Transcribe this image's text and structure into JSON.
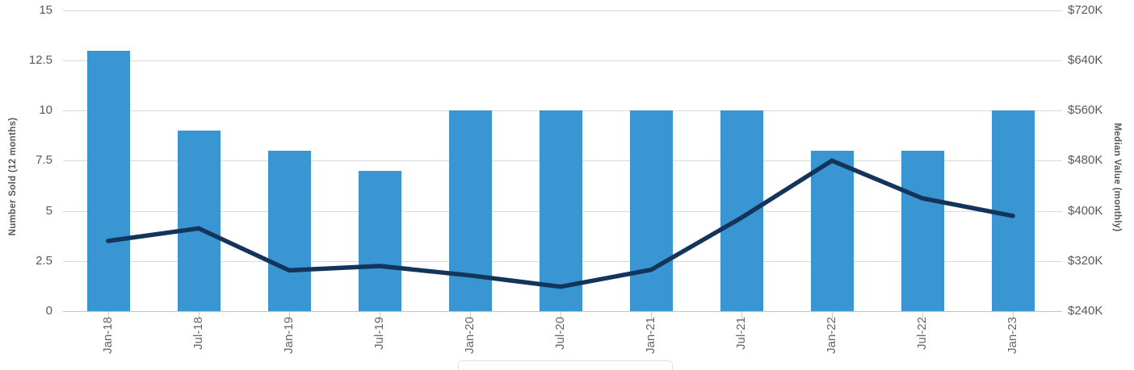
{
  "chart_data": {
    "type": "bar",
    "subtype": "combo-bar-line-dual-axis",
    "title": "",
    "categories": [
      "Jan-18",
      "Jul-18",
      "Jan-19",
      "Jul-19",
      "Jan-20",
      "Jul-20",
      "Jan-21",
      "Jul-21",
      "Jan-22",
      "Jul-22",
      "Jan-23"
    ],
    "series": [
      {
        "name": "Number Sold (12 months)",
        "type": "bar",
        "axis": "left",
        "color": "#3996d3",
        "values": [
          13,
          9,
          8,
          7,
          10,
          10,
          10,
          10,
          8,
          8,
          10
        ]
      },
      {
        "name": "Median Value (monthly)",
        "type": "line",
        "axis": "right",
        "color": "#14355b",
        "values_thousands": [
          352,
          372,
          305,
          312,
          297,
          279,
          306,
          389,
          480,
          420,
          392
        ]
      }
    ],
    "left_axis": {
      "label": "Number Sold (12 months)",
      "range": [
        0,
        15
      ],
      "tick_values": [
        0,
        2.5,
        5,
        7.5,
        10,
        12.5,
        15
      ],
      "tick_labels": [
        "0",
        "2.5",
        "5",
        "7.5",
        "10",
        "12.5",
        "15"
      ]
    },
    "right_axis": {
      "label": "Median Value (monthly)",
      "range_thousands": [
        240,
        720
      ],
      "tick_values_thousands": [
        240,
        320,
        400,
        480,
        560,
        640,
        720
      ],
      "tick_labels": [
        "$240K",
        "$320K",
        "$400K",
        "$480K",
        "$560K",
        "$640K",
        "$720K"
      ]
    },
    "grid": "horizontal-only",
    "legend": "clipped-at-bottom-edge",
    "colors": {
      "bar": "#3996d3",
      "line": "#14355b",
      "gridline": "#d9d9d9",
      "axis_text": "#595959",
      "axis_title": "#58595b"
    }
  }
}
